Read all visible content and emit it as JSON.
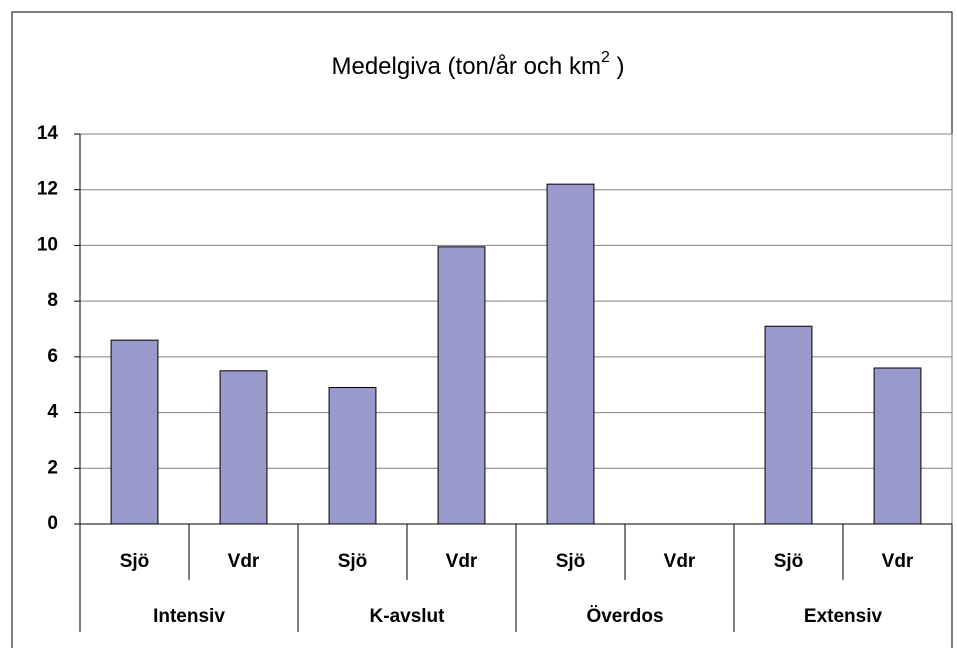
{
  "chart_data": {
    "type": "bar",
    "title": [
      "Medelgiva (ton/år och km",
      "2",
      " )"
    ],
    "categories": [
      "Sjö",
      "Vdr",
      "Sjö",
      "Vdr",
      "Sjö",
      "Vdr",
      "Sjö",
      "Vdr"
    ],
    "groups": [
      "Intensiv",
      "K-avslut",
      "Överdos",
      "Extensiv"
    ],
    "values": [
      6.6,
      5.5,
      4.9,
      9.95,
      12.2,
      null,
      7.1,
      5.6
    ],
    "color": "#9999cc",
    "ylim": [
      0,
      14
    ],
    "yticks": [
      0,
      2,
      4,
      6,
      8,
      10,
      12,
      14
    ],
    "grid": true
  }
}
